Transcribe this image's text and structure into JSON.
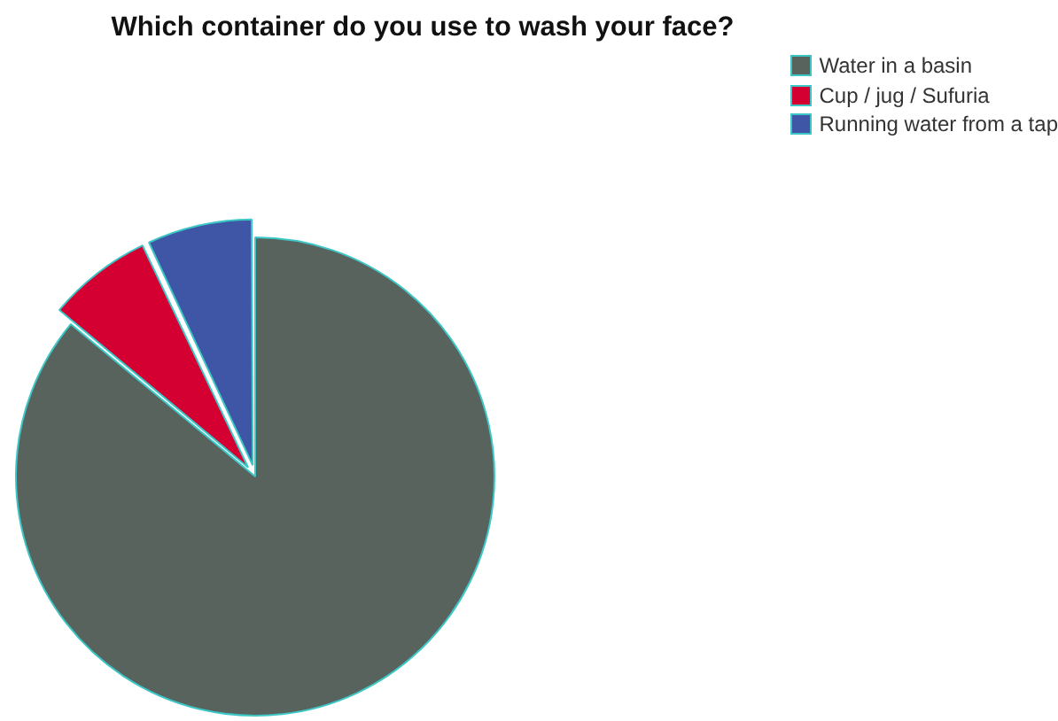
{
  "chart_data": {
    "type": "pie",
    "title": "Which container do you use to wash your face?",
    "categories": [
      "Water in a basin",
      "Cup / jug / Sufuria",
      "Running water from a tap"
    ],
    "values": [
      86,
      7,
      7
    ],
    "colors": [
      "#59635d",
      "#d50032",
      "#3f56a6"
    ],
    "legend": "top right"
  }
}
